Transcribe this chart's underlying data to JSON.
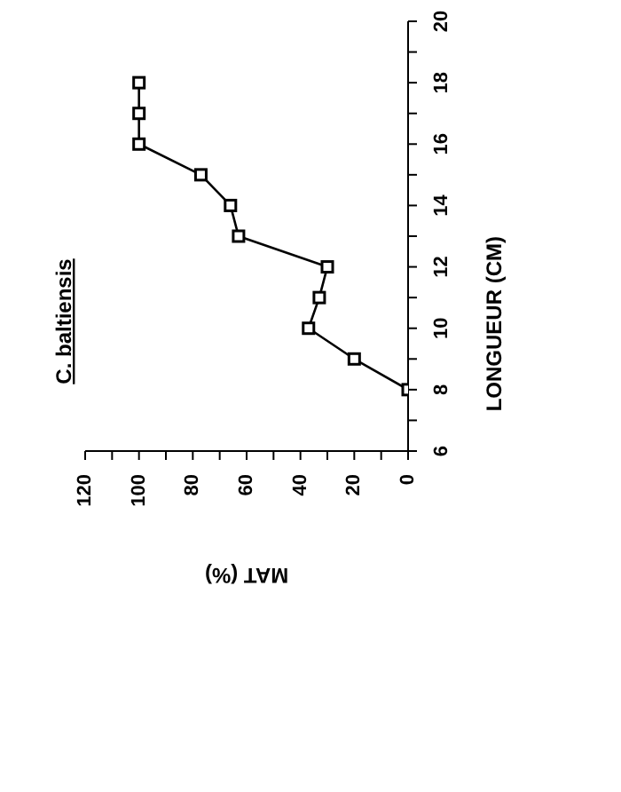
{
  "chart_data": {
    "type": "line",
    "title": "C. baltiensis",
    "xlabel": "MAT (%)",
    "ylabel": "LONGUEUR (CM)",
    "series": [
      {
        "color": "#000000",
        "x": [
          0,
          20,
          37,
          33,
          30,
          63,
          66,
          77,
          100,
          100,
          100
        ],
        "values": [
          8,
          9,
          10,
          11,
          12,
          13,
          14,
          15,
          16,
          17,
          18
        ]
      }
    ],
    "xlim": [
      120,
      0
    ],
    "xticks": [
      120,
      {
        "value": 110,
        "label": null
      },
      100,
      {
        "value": 90,
        "label": null
      },
      80,
      {
        "value": 70,
        "label": null
      },
      60,
      {
        "value": 50,
        "label": null
      },
      40,
      {
        "value": 30,
        "label": null
      },
      20,
      {
        "value": 10,
        "label": null
      },
      0
    ],
    "ylim": [
      6,
      20
    ],
    "yticks": [
      6,
      {
        "value": 7,
        "label": null
      },
      8,
      {
        "value": 9,
        "label": null
      },
      10,
      {
        "value": 11,
        "label": null
      },
      12,
      {
        "value": 13,
        "label": null
      },
      14,
      {
        "value": 15,
        "label": null
      },
      16,
      {
        "value": 17,
        "label": null
      },
      18,
      {
        "value": 19,
        "label": null
      },
      20
    ],
    "marker": "square",
    "line_style": "solid",
    "grid": false,
    "legend": false
  }
}
